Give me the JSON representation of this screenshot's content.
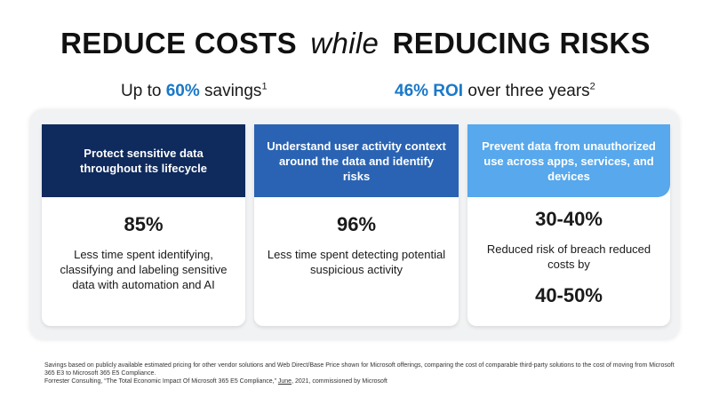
{
  "title": {
    "part1": "REDUCE COSTS",
    "emphasis": "while",
    "part2": "REDUCING RISKS"
  },
  "subheads": {
    "left": {
      "prefix": "Up to ",
      "highlight": "60%",
      "suffix": " savings",
      "sup": "1"
    },
    "right": {
      "highlight": "46% ROI",
      "suffix": " over three years",
      "sup": "2"
    }
  },
  "cards": [
    {
      "header": "Protect sensitive data throughout its lifecycle",
      "stat": "85%",
      "desc": "Less time spent identifying, classifying and labeling sensitive data with automation and AI"
    },
    {
      "header": "Understand user activity context around the data and identify risks",
      "stat": "96%",
      "desc": "Less time spent detecting potential suspicious activity"
    },
    {
      "header": "Prevent data from unauthorized use across apps, services, and devices",
      "stat": "30-40%",
      "desc": "Reduced risk of breach reduced costs by",
      "stat2": "40-50%"
    }
  ],
  "footnotes": {
    "line1": "Savings based on publicly available estimated pricing for other vendor solutions and Web Direct/Base Price shown for Microsoft offerings, comparing the cost of comparable third-party solutions to the cost of moving from Microsoft 365 E3 to Microsoft 365 E5 Compliance.",
    "line2_prefix": "Forrester Consulting, “The Total Economic Impact Of Microsoft 365 E5 Compliance,” ",
    "line2_date": "June",
    "line2_suffix": ", 2021, commissioned by Microsoft"
  },
  "colors": {
    "accent": "#1a78c8",
    "card1_header": "#0f2a5c",
    "card2_header": "#2a63b3",
    "card3_header": "#57a8ec"
  }
}
